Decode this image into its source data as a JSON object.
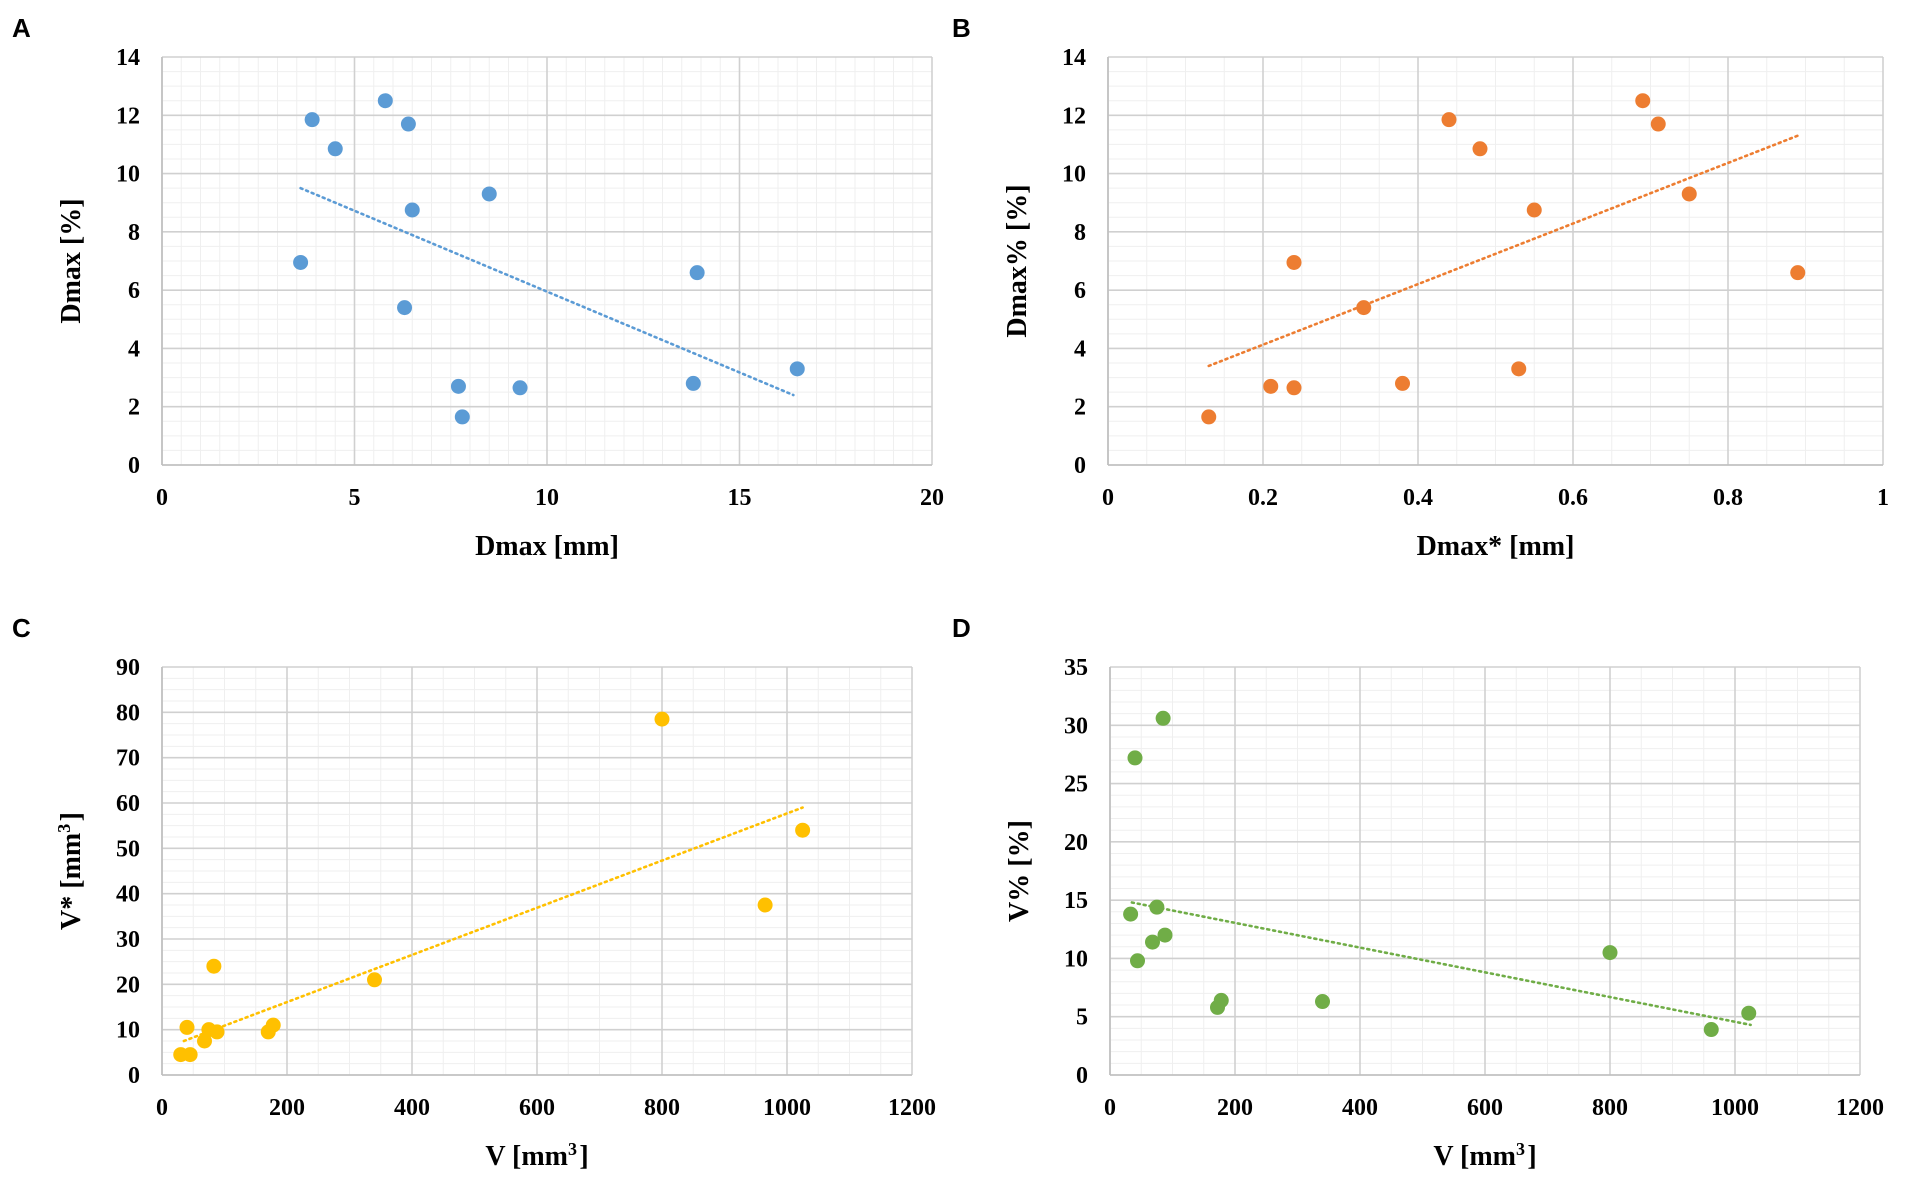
{
  "chart_data": [
    {
      "type": "scatter",
      "panel": "A",
      "color": "#5B9BD5",
      "xlabel": "Dmax [mm]",
      "ylabel": "Dmax [%]",
      "xlim": [
        0,
        20
      ],
      "ylim": [
        0,
        14
      ],
      "xticks": [
        0,
        5,
        10,
        15,
        20
      ],
      "yticks": [
        0,
        2,
        4,
        6,
        8,
        10,
        12,
        14
      ],
      "x_minor_step": 0.5,
      "y_minor_step": 0.5,
      "trendline": {
        "style": "dotted",
        "x": [
          3.6,
          16.4
        ],
        "y": [
          9.5,
          2.4
        ]
      },
      "points": [
        [
          3.6,
          6.95
        ],
        [
          3.9,
          11.85
        ],
        [
          4.5,
          10.85
        ],
        [
          5.8,
          12.5
        ],
        [
          6.4,
          11.7
        ],
        [
          6.5,
          8.75
        ],
        [
          6.3,
          5.4
        ],
        [
          8.5,
          9.3
        ],
        [
          7.7,
          2.7
        ],
        [
          7.8,
          1.65
        ],
        [
          9.3,
          2.65
        ],
        [
          13.9,
          6.6
        ],
        [
          13.8,
          2.8
        ],
        [
          16.5,
          3.3
        ]
      ]
    },
    {
      "type": "scatter",
      "panel": "B",
      "color": "#ED7D31",
      "xlabel": "Dmax* [mm]",
      "ylabel": "Dmax% [%]",
      "xlim": [
        0,
        1
      ],
      "ylim": [
        0,
        14
      ],
      "xticks": [
        0,
        0.2,
        0.4,
        0.6,
        0.8,
        1
      ],
      "yticks": [
        0,
        2,
        4,
        6,
        8,
        10,
        12,
        14
      ],
      "x_minor_step": 0.05,
      "y_minor_step": 0.5,
      "trendline": {
        "style": "dotted",
        "x": [
          0.13,
          0.89
        ],
        "y": [
          3.4,
          11.3
        ]
      },
      "points": [
        [
          0.13,
          1.65
        ],
        [
          0.21,
          2.7
        ],
        [
          0.24,
          2.65
        ],
        [
          0.24,
          6.95
        ],
        [
          0.33,
          5.4
        ],
        [
          0.38,
          2.8
        ],
        [
          0.44,
          11.85
        ],
        [
          0.48,
          10.85
        ],
        [
          0.53,
          3.3
        ],
        [
          0.55,
          8.75
        ],
        [
          0.69,
          12.5
        ],
        [
          0.71,
          11.7
        ],
        [
          0.75,
          9.3
        ],
        [
          0.89,
          6.6
        ]
      ]
    },
    {
      "type": "scatter",
      "panel": "C",
      "color": "#FFC000",
      "xlabel": "V [mm³]",
      "ylabel": "V* [mm³]",
      "xlim": [
        0,
        1200
      ],
      "ylim": [
        0,
        90
      ],
      "xticks": [
        0,
        200,
        400,
        600,
        800,
        1000,
        1200
      ],
      "yticks": [
        0,
        10,
        20,
        30,
        40,
        50,
        60,
        70,
        80,
        90
      ],
      "x_minor_step": 50,
      "y_minor_step": 2.5,
      "trendline": {
        "style": "dotted",
        "x": [
          35,
          1025
        ],
        "y": [
          7.5,
          59
        ]
      },
      "points": [
        [
          30,
          4.5
        ],
        [
          40,
          10.5
        ],
        [
          45,
          4.5
        ],
        [
          68,
          7.5
        ],
        [
          75,
          10
        ],
        [
          83,
          24
        ],
        [
          88,
          9.5
        ],
        [
          170,
          9.5
        ],
        [
          178,
          11
        ],
        [
          340,
          21
        ],
        [
          800,
          78.5
        ],
        [
          965,
          37.5
        ],
        [
          1025,
          54
        ]
      ]
    },
    {
      "type": "scatter",
      "panel": "D",
      "color": "#70AD47",
      "xlabel": "V [mm³]",
      "ylabel": "V% [%]",
      "xlim": [
        0,
        1200
      ],
      "ylim": [
        0,
        35
      ],
      "xticks": [
        0,
        200,
        400,
        600,
        800,
        1000,
        1200
      ],
      "yticks": [
        0,
        5,
        10,
        15,
        20,
        25,
        30,
        35
      ],
      "x_minor_step": 50,
      "y_minor_step": 1,
      "trendline": {
        "style": "dotted",
        "x": [
          35,
          1025
        ],
        "y": [
          14.8,
          4.3
        ]
      },
      "points": [
        [
          33,
          13.8
        ],
        [
          40,
          27.2
        ],
        [
          44,
          9.8
        ],
        [
          68,
          11.4
        ],
        [
          75,
          14.4
        ],
        [
          85,
          30.6
        ],
        [
          88,
          12
        ],
        [
          172,
          5.8
        ],
        [
          178,
          6.4
        ],
        [
          340,
          6.3
        ],
        [
          800,
          10.5
        ],
        [
          962,
          3.9
        ],
        [
          1022,
          5.3
        ]
      ]
    }
  ]
}
